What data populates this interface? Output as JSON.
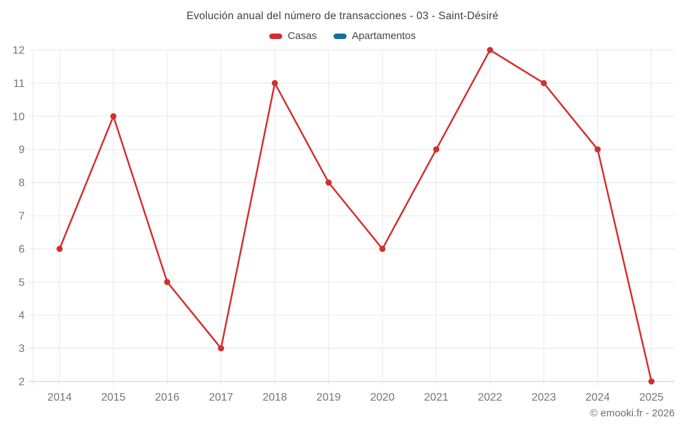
{
  "chart_data": {
    "type": "line",
    "title": "Evolución anual del número de transacciones - 03 - Saint-Désiré",
    "footer": "© emooki.fr - 2026",
    "categories": [
      "2014",
      "2015",
      "2016",
      "2017",
      "2018",
      "2019",
      "2020",
      "2021",
      "2022",
      "2023",
      "2024",
      "2025"
    ],
    "series": [
      {
        "name": "Casas",
        "color": "#d32f2f",
        "values": [
          6,
          10,
          5,
          3,
          11,
          8,
          6,
          9,
          12,
          11,
          9,
          2
        ]
      },
      {
        "name": "Apartamentos",
        "color": "#176d9c",
        "values": []
      }
    ],
    "xlabel": "",
    "ylabel": "",
    "ylim": [
      2,
      12
    ],
    "yticks": [
      2,
      3,
      4,
      5,
      6,
      7,
      8,
      9,
      10,
      11,
      12
    ],
    "grid": true,
    "legend_position": "top"
  }
}
